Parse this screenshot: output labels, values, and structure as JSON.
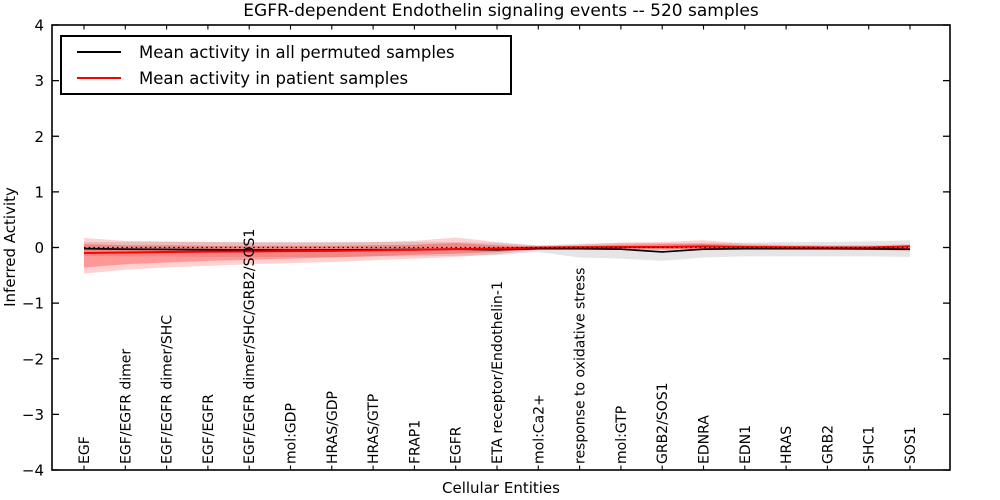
{
  "title": "EGFR-dependent Endothelin signaling events -- 520 samples",
  "legend": {
    "items": [
      {
        "label": "Mean activity in all permuted samples",
        "color": "#000000"
      },
      {
        "label": "Mean activity in patient samples",
        "color": "#ff0000"
      }
    ]
  },
  "chart_data": {
    "type": "line",
    "title": "EGFR-dependent Endothelin signaling events -- 520 samples",
    "xlabel": "Cellular Entities",
    "ylabel": "Inferred Activity",
    "ylim": [
      -4,
      4
    ],
    "yticks": [
      4,
      3,
      2,
      1,
      0,
      -1,
      -2,
      -3,
      -4
    ],
    "grid": false,
    "legend_position": "upper left",
    "categories": [
      "EGF",
      "EGF/EGFR dimer",
      "EGF/EGFR dimer/SHC",
      "EGF/EGFR",
      "EGF/EGFR dimer/SHC/GRB2/SOS1",
      "mol:GDP",
      "HRAS/GDP",
      "HRAS/GTP",
      "FRAP1",
      "EGFR",
      "ETA receptor/Endothelin-1",
      "mol:Ca2+",
      "response to oxidative stress",
      "mol:GTP",
      "GRB2/SOS1",
      "EDNRA",
      "EDN1",
      "HRAS",
      "GRB2",
      "SHC1",
      "SOS1"
    ],
    "series": [
      {
        "name": "Mean activity in all permuted samples",
        "color": "#000000",
        "style": "solid",
        "width": 1.7,
        "values": [
          -0.02,
          -0.03,
          -0.035,
          -0.04,
          -0.045,
          -0.05,
          -0.045,
          -0.04,
          -0.035,
          -0.03,
          -0.04,
          -0.02,
          -0.02,
          -0.03,
          -0.08,
          -0.03,
          -0.02,
          -0.02,
          -0.02,
          -0.025,
          -0.03
        ]
      },
      {
        "name": "Mean activity in patient samples",
        "color": "#ff0000",
        "style": "solid",
        "width": 2,
        "values": [
          -0.1,
          -0.09,
          -0.08,
          -0.075,
          -0.07,
          -0.065,
          -0.06,
          -0.05,
          -0.04,
          -0.03,
          -0.02,
          0.0,
          0.005,
          0.01,
          0.01,
          0.02,
          0.01,
          0.005,
          0.0,
          0.0,
          0.02
        ]
      },
      {
        "name": "zero reference",
        "color": "#000000",
        "style": "dotted",
        "width": 1.3,
        "values": [
          0,
          0,
          0,
          0,
          0,
          0,
          0,
          0,
          0,
          0,
          0,
          0,
          0,
          0,
          0,
          0,
          0,
          0,
          0,
          0,
          0
        ]
      }
    ],
    "bands": [
      {
        "name": "permuted-range",
        "color": "rgba(0,0,0,0.10)",
        "upper": [
          0.1,
          0.1,
          0.1,
          0.1,
          0.1,
          0.1,
          0.1,
          0.1,
          0.1,
          0.1,
          0.08,
          0.04,
          0.07,
          0.08,
          0.08,
          0.08,
          0.09,
          0.1,
          0.1,
          0.11,
          0.13
        ],
        "lower": [
          -0.15,
          -0.16,
          -0.16,
          -0.17,
          -0.17,
          -0.17,
          -0.17,
          -0.16,
          -0.16,
          -0.15,
          -0.14,
          -0.08,
          -0.18,
          -0.2,
          -0.24,
          -0.18,
          -0.16,
          -0.16,
          -0.16,
          -0.16,
          -0.17
        ]
      },
      {
        "name": "patient-range-outer",
        "color": "rgba(255,0,0,0.18)",
        "upper": [
          0.17,
          0.12,
          0.11,
          0.1,
          0.09,
          0.09,
          0.09,
          0.1,
          0.12,
          0.18,
          0.1,
          0.03,
          0.05,
          0.09,
          0.1,
          0.13,
          0.07,
          0.05,
          0.04,
          0.04,
          0.06
        ],
        "lower": [
          -0.47,
          -0.4,
          -0.36,
          -0.33,
          -0.3,
          -0.28,
          -0.26,
          -0.23,
          -0.2,
          -0.17,
          -0.12,
          -0.04,
          -0.04,
          -0.04,
          -0.05,
          -0.05,
          -0.04,
          -0.04,
          -0.04,
          -0.04,
          -0.07
        ]
      },
      {
        "name": "patient-range-inner",
        "color": "rgba(255,0,0,0.28)",
        "upper": [
          0.06,
          0.04,
          0.04,
          0.03,
          0.03,
          0.03,
          0.03,
          0.04,
          0.05,
          0.08,
          0.04,
          0.015,
          0.03,
          0.05,
          0.06,
          0.07,
          0.04,
          0.03,
          0.02,
          0.02,
          0.04
        ],
        "lower": [
          -0.36,
          -0.3,
          -0.27,
          -0.24,
          -0.22,
          -0.2,
          -0.18,
          -0.16,
          -0.13,
          -0.11,
          -0.08,
          -0.03,
          -0.03,
          -0.03,
          -0.03,
          -0.03,
          -0.03,
          -0.03,
          -0.03,
          -0.03,
          -0.05
        ]
      }
    ]
  }
}
